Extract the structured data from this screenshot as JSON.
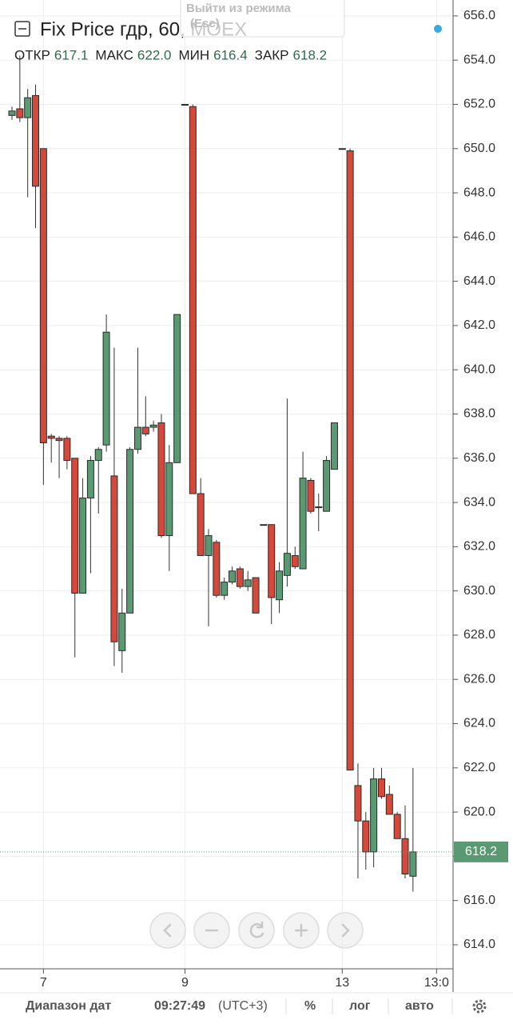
{
  "header": {
    "title": "Fix Price гдр, 60, MOEX",
    "exit_button": [
      "Выйти из режима",
      "(Esc)"
    ],
    "ohlc": [
      {
        "label": "ОТКР",
        "value": "617.1"
      },
      {
        "label": "МАКС",
        "value": "622.0"
      },
      {
        "label": "МИН",
        "value": "616.4"
      },
      {
        "label": "ЗАКР",
        "value": "618.2"
      }
    ]
  },
  "chart_data": {
    "type": "candlestick",
    "categories": [
      null,
      null,
      null,
      null,
      "7",
      null,
      null,
      null,
      null,
      null,
      null,
      null,
      null,
      null,
      null,
      null,
      null,
      null,
      null,
      null,
      null,
      null,
      "9",
      null,
      null,
      null,
      null,
      null,
      null,
      null,
      null,
      null,
      null,
      null,
      null,
      null,
      null,
      null,
      null,
      null,
      null,
      null,
      "13",
      null,
      null,
      null,
      null,
      null,
      null,
      null,
      null,
      null,
      null,
      null,
      "13:0"
    ],
    "open": [
      651.5,
      651.8,
      651.4,
      652.4,
      650.0,
      637.0,
      636.9,
      636.9,
      636.0,
      629.9,
      634.2,
      635.9,
      636.6,
      635.2,
      627.3,
      629.0,
      636.4,
      637.4,
      637.4,
      637.6,
      632.5,
      635.8,
      652.0,
      651.9,
      634.4,
      631.6,
      632.2,
      629.8,
      630.4,
      631.0,
      630.2,
      630.6,
      633.0,
      633.0,
      629.6,
      630.7,
      631.6,
      631.0,
      635.0,
      633.8,
      633.6,
      635.5,
      650.0,
      649.9,
      621.2,
      619.6,
      618.2,
      621.5,
      620.8,
      619.9,
      618.8,
      617.1,
      null,
      null,
      null
    ],
    "high": [
      651.9,
      654.2,
      652.7,
      652.9,
      650.0,
      637.1,
      637.0,
      637.0,
      636.0,
      635.1,
      636.1,
      636.5,
      642.5,
      641.0,
      630.1,
      636.5,
      641.0,
      638.8,
      637.7,
      638.0,
      636.6,
      642.5,
      652.0,
      652.0,
      635.1,
      632.8,
      632.3,
      630.6,
      631.1,
      631.1,
      630.9,
      630.6,
      633.0,
      633.0,
      631.3,
      638.7,
      632.0,
      636.3,
      635.1,
      634.4,
      636.1,
      637.6,
      650.0,
      650.0,
      622.2,
      620.0,
      622.0,
      622.0,
      621.2,
      620.0,
      620.3,
      622.0,
      null,
      null,
      null
    ],
    "low": [
      651.3,
      651.2,
      647.8,
      646.4,
      634.8,
      635.8,
      635.1,
      635.5,
      627.0,
      629.9,
      630.8,
      633.5,
      636.3,
      626.6,
      626.3,
      629.0,
      636.2,
      637.0,
      637.2,
      632.4,
      630.9,
      635.8,
      652.0,
      634.4,
      631.6,
      628.4,
      629.7,
      629.6,
      630.3,
      630.1,
      630.0,
      629.0,
      633.0,
      628.5,
      629.0,
      630.2,
      631.0,
      631.0,
      633.5,
      632.7,
      633.6,
      635.5,
      650.0,
      621.9,
      617.0,
      617.4,
      617.5,
      620.6,
      619.9,
      618.8,
      617.0,
      616.4,
      null,
      null,
      null
    ],
    "close": [
      651.7,
      651.4,
      652.3,
      648.3,
      636.7,
      636.9,
      636.8,
      635.9,
      629.9,
      634.2,
      635.9,
      636.4,
      641.7,
      627.7,
      629.0,
      636.4,
      637.4,
      637.1,
      637.5,
      632.5,
      635.8,
      642.5,
      652.0,
      634.4,
      631.6,
      632.5,
      629.8,
      630.4,
      630.9,
      630.2,
      630.5,
      629.0,
      633.0,
      629.7,
      630.9,
      631.7,
      631.1,
      635.1,
      633.6,
      633.8,
      635.9,
      637.6,
      650.0,
      621.9,
      619.6,
      618.2,
      621.5,
      620.7,
      619.9,
      618.8,
      617.2,
      618.2,
      null,
      null,
      null
    ],
    "up_color": "#5a9a72",
    "down_color": "#d4493a",
    "ylim": [
      612.95,
      656.72
    ],
    "yticks": [
      {
        "value": 614,
        "label": "614.0"
      },
      {
        "value": 616,
        "label": "616.0"
      },
      {
        "value": 618,
        "label": "618.0"
      },
      {
        "value": 620,
        "label": "620.0"
      },
      {
        "value": 622,
        "label": "622.0"
      },
      {
        "value": 624,
        "label": "624.0"
      },
      {
        "value": 626,
        "label": "626.0"
      },
      {
        "value": 628,
        "label": "628.0"
      },
      {
        "value": 630,
        "label": "630.0"
      },
      {
        "value": 632,
        "label": "632.0"
      },
      {
        "value": 634,
        "label": "634.0"
      },
      {
        "value": 636,
        "label": "636.0"
      },
      {
        "value": 638,
        "label": "638.0"
      },
      {
        "value": 640,
        "label": "640.0"
      },
      {
        "value": 642,
        "label": "642.0"
      },
      {
        "value": 644,
        "label": "644.0"
      },
      {
        "value": 646,
        "label": "646.0"
      },
      {
        "value": 648,
        "label": "648.0"
      },
      {
        "value": 650,
        "label": "650.0"
      },
      {
        "value": 652,
        "label": "652.0"
      },
      {
        "value": 654,
        "label": "654.0"
      },
      {
        "value": 656,
        "label": "656.0"
      }
    ],
    "grid": true,
    "last_price": 618.2
  },
  "toolbar": {
    "date_range": "Диапазон дат",
    "time": "09:27:49",
    "timezone": "(UTC+3)",
    "percent": "%",
    "log": "лог",
    "auto": "авто"
  }
}
